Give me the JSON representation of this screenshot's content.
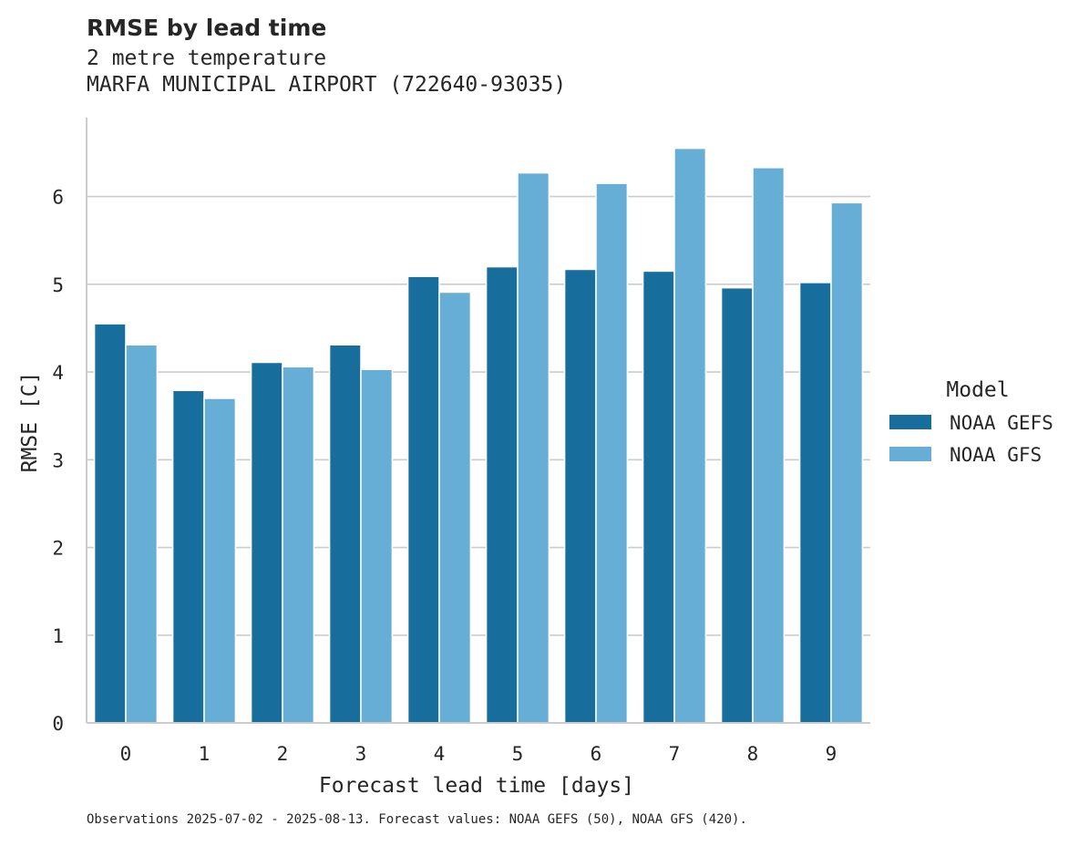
{
  "title": "RMSE by lead time",
  "subtitle_line1": "2 metre temperature",
  "subtitle_line2": "MARFA MUNICIPAL AIRPORT (722640-93035)",
  "footnote": "Observations 2025-07-02 - 2025-08-13. Forecast values: NOAA GEFS (50), NOAA GFS (420).",
  "chart_data": {
    "type": "bar",
    "title": "RMSE by lead time",
    "xlabel": "Forecast lead time [days]",
    "ylabel": "RMSE [C]",
    "ylim": [
      0,
      6.9
    ],
    "yticks": [
      0,
      1,
      2,
      3,
      4,
      5,
      6
    ],
    "grid": "horizontal",
    "legend_title": "Model",
    "legend_placement": "right",
    "categories": [
      "0",
      "1",
      "2",
      "3",
      "4",
      "5",
      "6",
      "7",
      "8",
      "9"
    ],
    "series": [
      {
        "name": "NOAA GEFS",
        "color": "#176d9c",
        "values": [
          4.55,
          3.79,
          4.11,
          4.31,
          5.09,
          5.2,
          5.17,
          5.15,
          4.96,
          5.02
        ]
      },
      {
        "name": "NOAA GFS",
        "color": "#66aed6",
        "values": [
          4.31,
          3.7,
          4.06,
          4.03,
          4.91,
          6.27,
          6.15,
          6.55,
          6.33,
          5.93
        ]
      }
    ]
  }
}
